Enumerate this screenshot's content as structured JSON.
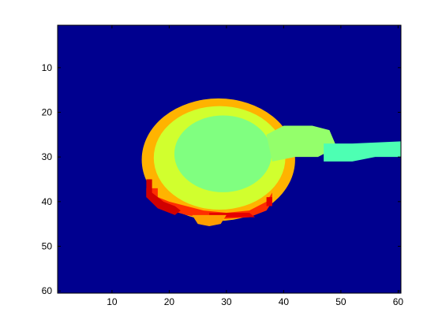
{
  "chart_data": {
    "type": "heatmap",
    "title": "",
    "xlabel": "",
    "ylabel": "",
    "colormap": "jet",
    "background_color": "#00008f",
    "xlim": [
      0.5,
      60.5
    ],
    "ylim": [
      0.5,
      60.5
    ],
    "y_reversed": true,
    "x_ticks": [
      10,
      20,
      30,
      40,
      50,
      60
    ],
    "y_ticks": [
      10,
      20,
      30,
      40,
      50,
      60
    ],
    "x_tick_labels": [
      "10",
      "20",
      "30",
      "40",
      "50",
      "60"
    ],
    "y_tick_labels": [
      "10",
      "20",
      "30",
      "40",
      "50",
      "60"
    ],
    "grid": false,
    "value_range": [
      0,
      1
    ],
    "regions": [
      {
        "name": "blob-outer-ring",
        "shape": "ellipse",
        "cx": 28.6,
        "cy": 30.6,
        "rx": 13.4,
        "ry": 13.7,
        "value": 0.7
      },
      {
        "name": "blob-mid-ring",
        "shape": "ellipse",
        "cx": 28.8,
        "cy": 30.2,
        "rx": 11.5,
        "ry": 11.6,
        "value": 0.58
      },
      {
        "name": "blob-core",
        "shape": "ellipse",
        "cx": 29.4,
        "cy": 29.3,
        "rx": 8.5,
        "ry": 8.6,
        "value": 0.5
      },
      {
        "name": "tail-neck",
        "shape": "polygon",
        "points": [
          [
            37,
            25
          ],
          [
            40,
            23
          ],
          [
            45,
            23
          ],
          [
            48,
            24
          ],
          [
            49,
            27
          ],
          [
            49,
            28
          ],
          [
            46,
            30
          ],
          [
            42,
            30
          ],
          [
            38,
            31
          ]
        ],
        "value": 0.52
      },
      {
        "name": "tail-arm",
        "shape": "polygon",
        "points": [
          [
            47,
            27
          ],
          [
            52,
            27
          ],
          [
            60.5,
            26.5
          ],
          [
            60.5,
            30
          ],
          [
            56,
            30
          ],
          [
            52,
            31
          ],
          [
            47,
            31
          ]
        ],
        "value": 0.45
      },
      {
        "name": "rim-orange-left",
        "shape": "polygon",
        "points": [
          [
            16,
            37
          ],
          [
            18,
            37
          ],
          [
            18,
            39
          ],
          [
            20,
            40
          ],
          [
            23,
            41
          ],
          [
            26,
            42
          ],
          [
            30,
            42.5
          ],
          [
            34,
            42
          ],
          [
            37,
            40
          ],
          [
            38,
            38
          ],
          [
            38,
            40
          ],
          [
            37,
            42
          ],
          [
            34,
            43.5
          ],
          [
            28,
            44
          ],
          [
            23,
            43
          ],
          [
            19,
            41.5
          ],
          [
            16,
            39
          ]
        ],
        "value": 0.83
      },
      {
        "name": "rim-red-left",
        "shape": "polygon",
        "points": [
          [
            16,
            35
          ],
          [
            17,
            35
          ],
          [
            17,
            38
          ],
          [
            19,
            40
          ],
          [
            21,
            41
          ],
          [
            22,
            42
          ],
          [
            21,
            43
          ],
          [
            18,
            41.5
          ],
          [
            16,
            39
          ]
        ],
        "value": 0.92
      },
      {
        "name": "rim-red-bottom",
        "shape": "polygon",
        "points": [
          [
            27,
            42.5
          ],
          [
            34,
            42.5
          ],
          [
            35,
            43.5
          ],
          [
            27,
            43.5
          ]
        ],
        "value": 0.9
      },
      {
        "name": "rim-red-right",
        "shape": "polygon",
        "points": [
          [
            37,
            39
          ],
          [
            38,
            39
          ],
          [
            38,
            41
          ],
          [
            37,
            41
          ]
        ],
        "value": 0.9
      },
      {
        "name": "bottom-lobe",
        "shape": "polygon",
        "points": [
          [
            24,
            43
          ],
          [
            30,
            43
          ],
          [
            29,
            45
          ],
          [
            27,
            45.5
          ],
          [
            25,
            45
          ]
        ],
        "value": 0.72
      }
    ]
  }
}
